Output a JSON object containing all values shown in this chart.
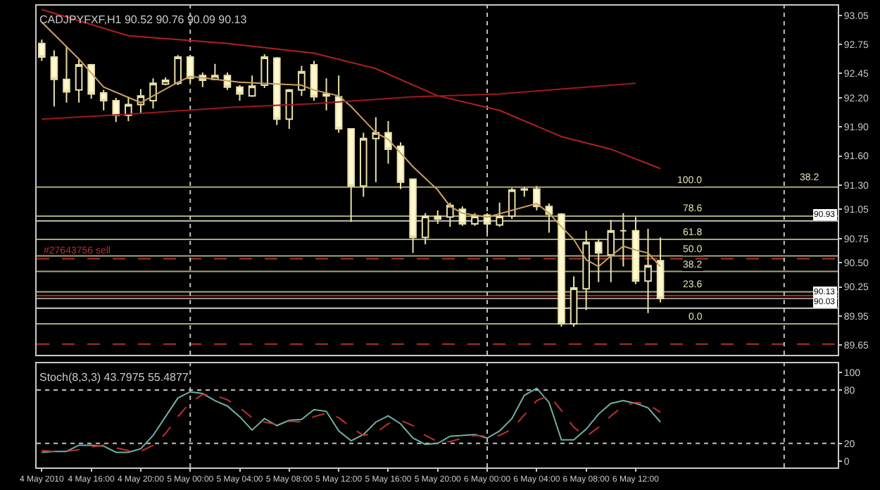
{
  "chart_data": [
    {
      "type": "candlestick",
      "title": "CADJPYFXF,H1 90.52 90.76 90.09 90.13",
      "x": [
        "2010-05-04T12:00",
        "2010-05-04T13:00",
        "2010-05-04T14:00",
        "2010-05-04T15:00",
        "2010-05-04T16:00",
        "2010-05-04T17:00",
        "2010-05-04T18:00",
        "2010-05-04T19:00",
        "2010-05-04T20:00",
        "2010-05-04T21:00",
        "2010-05-04T22:00",
        "2010-05-04T23:00",
        "2010-05-05T00:00",
        "2010-05-05T01:00",
        "2010-05-05T02:00",
        "2010-05-05T03:00",
        "2010-05-05T04:00",
        "2010-05-05T05:00",
        "2010-05-05T06:00",
        "2010-05-05T07:00",
        "2010-05-05T08:00",
        "2010-05-05T09:00",
        "2010-05-05T10:00",
        "2010-05-05T11:00",
        "2010-05-05T12:00",
        "2010-05-05T13:00",
        "2010-05-05T14:00",
        "2010-05-05T15:00",
        "2010-05-05T16:00",
        "2010-05-05T17:00",
        "2010-05-05T18:00",
        "2010-05-05T19:00",
        "2010-05-05T20:00",
        "2010-05-05T21:00",
        "2010-05-05T22:00",
        "2010-05-05T23:00",
        "2010-05-06T00:00",
        "2010-05-06T01:00",
        "2010-05-06T02:00",
        "2010-05-06T03:00",
        "2010-05-06T04:00",
        "2010-05-06T05:00",
        "2010-05-06T06:00",
        "2010-05-06T07:00",
        "2010-05-06T08:00",
        "2010-05-06T09:00",
        "2010-05-06T10:00",
        "2010-05-06T11:00",
        "2010-05-06T12:00",
        "2010-05-06T13:00",
        "2010-05-06T14:00"
      ],
      "ohlc": [
        [
          92.76,
          92.8,
          92.58,
          92.62
        ],
        [
          92.62,
          92.69,
          92.11,
          92.39
        ],
        [
          92.39,
          92.73,
          92.15,
          92.26
        ],
        [
          92.28,
          92.6,
          92.15,
          92.54
        ],
        [
          92.54,
          92.55,
          92.19,
          92.24
        ],
        [
          92.25,
          92.28,
          92.07,
          92.17
        ],
        [
          92.17,
          92.2,
          91.95,
          92.02
        ],
        [
          92.02,
          92.21,
          91.96,
          92.13
        ],
        [
          92.13,
          92.29,
          92.04,
          92.22
        ],
        [
          92.17,
          92.4,
          92.09,
          92.35
        ],
        [
          92.34,
          92.41,
          92.33,
          92.38
        ],
        [
          92.35,
          92.64,
          92.33,
          92.62
        ],
        [
          92.62,
          92.64,
          92.36,
          92.4
        ],
        [
          92.43,
          92.46,
          92.31,
          92.38
        ],
        [
          92.39,
          92.55,
          92.38,
          92.43
        ],
        [
          92.43,
          92.46,
          92.28,
          92.31
        ],
        [
          92.31,
          92.33,
          92.17,
          92.24
        ],
        [
          92.22,
          92.43,
          92.21,
          92.32
        ],
        [
          92.33,
          92.65,
          92.3,
          92.62
        ],
        [
          92.61,
          92.62,
          91.92,
          91.98
        ],
        [
          91.98,
          92.29,
          91.88,
          92.28
        ],
        [
          92.28,
          92.53,
          92.22,
          92.47
        ],
        [
          92.54,
          92.58,
          92.17,
          92.21
        ],
        [
          92.22,
          92.4,
          92.07,
          92.24
        ],
        [
          92.21,
          92.43,
          91.84,
          91.88
        ],
        [
          91.88,
          91.88,
          90.92,
          91.29
        ],
        [
          91.29,
          91.84,
          91.18,
          91.78
        ],
        [
          91.78,
          92.0,
          91.33,
          91.84
        ],
        [
          91.84,
          91.96,
          91.52,
          91.67
        ],
        [
          91.7,
          91.74,
          91.26,
          91.33
        ],
        [
          91.36,
          91.36,
          90.6,
          90.76
        ],
        [
          90.76,
          91.01,
          90.69,
          90.98
        ],
        [
          90.98,
          91.04,
          90.9,
          90.95
        ],
        [
          90.97,
          91.12,
          90.87,
          91.09
        ],
        [
          91.05,
          91.08,
          90.88,
          90.9
        ],
        [
          90.9,
          91.01,
          90.88,
          90.98
        ],
        [
          90.99,
          91.01,
          90.81,
          90.9
        ],
        [
          90.89,
          91.12,
          90.87,
          90.98
        ],
        [
          90.98,
          91.27,
          90.95,
          91.25
        ],
        [
          91.25,
          91.28,
          91.18,
          91.26
        ],
        [
          91.26,
          91.29,
          91.04,
          91.08
        ],
        [
          91.08,
          91.11,
          90.81,
          91.0
        ],
        [
          91.0,
          91.01,
          89.84,
          89.87
        ],
        [
          89.87,
          90.36,
          89.84,
          90.24
        ],
        [
          90.23,
          90.83,
          90.01,
          90.71
        ],
        [
          90.71,
          90.74,
          90.3,
          90.6
        ],
        [
          90.58,
          90.94,
          90.3,
          90.83
        ],
        [
          90.83,
          91.01,
          90.46,
          90.83
        ],
        [
          90.83,
          90.97,
          90.28,
          90.31
        ],
        [
          90.31,
          90.85,
          89.98,
          90.47
        ],
        [
          90.52,
          90.76,
          90.09,
          90.13
        ]
      ],
      "series": [
        {
          "type": "line",
          "color": "#c8a060",
          "x": [
            "2010-05-04T12:00",
            "2010-05-04T15:00",
            "2010-05-04T17:00",
            "2010-05-04T20:00",
            "2010-05-04T23:00",
            "2010-05-05T00:00",
            "2010-05-05T04:00",
            "2010-05-05T09:00",
            "2010-05-05T10:00",
            "2010-05-05T12:00",
            "2010-05-05T13:00",
            "2010-05-05T15:00",
            "2010-05-05T16:00",
            "2010-05-05T18:00",
            "2010-05-05T20:00",
            "2010-05-05T21:00",
            "2010-05-05T22:00",
            "2010-05-06T00:00",
            "2010-05-06T02:00",
            "2010-05-06T04:00",
            "2010-05-06T05:00",
            "2010-05-06T06:00",
            "2010-05-06T07:00",
            "2010-05-06T08:00",
            "2010-05-06T09:00",
            "2010-05-06T10:00",
            "2010-05-06T11:00",
            "2010-05-06T12:00",
            "2010-05-06T13:00",
            "2010-05-06T14:00"
          ],
          "values": [
            92.98,
            92.6,
            92.31,
            92.15,
            92.36,
            92.42,
            92.36,
            92.33,
            92.28,
            92.22,
            92.11,
            91.84,
            91.77,
            91.49,
            91.25,
            91.08,
            91.01,
            90.97,
            91.04,
            91.11,
            91.01,
            90.87,
            90.74,
            90.53,
            90.46,
            90.57,
            90.67,
            90.63,
            90.6,
            90.46
          ]
        },
        {
          "type": "line",
          "color": "#b02020",
          "x": [
            "2010-05-04T12:00",
            "2010-05-04T19:00",
            "2010-05-05T03:00",
            "2010-05-05T10:00",
            "2010-05-05T15:00",
            "2010-05-05T20:00",
            "2010-05-06T01:00",
            "2010-05-06T06:00",
            "2010-05-06T10:00",
            "2010-05-06T14:00"
          ],
          "values": [
            93.11,
            92.84,
            92.76,
            92.66,
            92.5,
            92.22,
            92.07,
            91.8,
            91.67,
            91.47
          ]
        },
        {
          "type": "line",
          "color": "#a01818",
          "x": [
            "2010-05-04T12:00",
            "2010-05-04T19:00",
            "2010-05-05T03:00",
            "2010-05-05T10:00",
            "2010-05-05T18:00",
            "2010-05-06T01:00",
            "2010-05-06T06:00",
            "2010-05-06T12:00"
          ],
          "values": [
            91.98,
            92.03,
            92.1,
            92.14,
            92.21,
            92.24,
            92.29,
            92.35
          ]
        }
      ],
      "xlim": [
        "2010-05-04T11:35",
        "2010-05-07T04:20"
      ],
      "ylim": [
        89.55,
        93.15
      ],
      "yticks": [
        93.05,
        92.75,
        92.45,
        {
          "value": 92.2,
          "label": "92.20"
        },
        {
          "value": 91.9,
          "label": "91.90"
        },
        {
          "value": 91.6,
          "label": "91.60"
        },
        {
          "value": 91.3,
          "label": "91.30"
        },
        91.05,
        90.75,
        {
          "value": 90.5,
          "label": "90.50"
        },
        90.25,
        89.95,
        89.65
      ],
      "tick_labels": "y",
      "grid": false,
      "ref_lines": [
        {
          "axis": "y",
          "value": 91.28,
          "color": "#a8a870",
          "line_style": "solid"
        },
        {
          "axis": "y",
          "value": 90.98,
          "color": "#a8a870",
          "line_style": "solid"
        },
        {
          "axis": "y",
          "value": 90.74,
          "color": "#a8a870",
          "line_style": "solid"
        },
        {
          "axis": "y",
          "value": 90.57,
          "color": "#a8a870",
          "line_style": "solid"
        },
        {
          "axis": "y",
          "value": 90.41,
          "color": "#a8a870",
          "line_style": "solid"
        },
        {
          "axis": "y",
          "value": 90.2,
          "color": "#a8a870",
          "line_style": "solid"
        },
        {
          "axis": "y",
          "value": 89.87,
          "color": "#a8a870",
          "line_style": "solid"
        },
        {
          "axis": "y",
          "value": 90.54,
          "label": "#27643756 sell",
          "color": "#b03030",
          "line_style": "dashed"
        },
        {
          "axis": "y",
          "value": 90.93,
          "color": "#c0c0c0",
          "line_style": "solid"
        },
        {
          "axis": "y",
          "value": 90.16,
          "color": "#c02020",
          "line_style": "solid"
        },
        {
          "axis": "y",
          "value": 90.13,
          "color": "#909090",
          "line_style": "solid"
        },
        {
          "axis": "y",
          "value": 90.03,
          "color": "#d0d0d0",
          "line_style": "solid"
        },
        {
          "axis": "y",
          "value": 89.66,
          "color": "#b03030",
          "line_style": "dashed"
        },
        {
          "axis": "x",
          "value": "2010-05-05T00:00",
          "color": "#c0c0c0",
          "line_style": "dotted"
        },
        {
          "axis": "x",
          "value": "2010-05-06T00:00",
          "color": "#c0c0c0",
          "line_style": "dotted"
        },
        {
          "axis": "x",
          "value": "2010-05-07T00:00",
          "color": "#c0c0c0",
          "line_style": "dotted"
        }
      ],
      "annotations": [
        {
          "text": "100.0",
          "x": "2010-05-06T17:30",
          "y": 91.28
        },
        {
          "text": "78.6",
          "x": "2010-05-06T17:30",
          "y": 90.98
        },
        {
          "text": "61.8",
          "x": "2010-05-06T17:30",
          "y": 90.74
        },
        {
          "text": "50.0",
          "x": "2010-05-06T17:30",
          "y": 90.57
        },
        {
          "text": "38.2",
          "x": "2010-05-06T17:30",
          "y": 90.41
        },
        {
          "text": "23.6",
          "x": "2010-05-06T17:30",
          "y": 90.2
        },
        {
          "text": "0.0",
          "x": "2010-05-06T17:30",
          "y": 89.87
        },
        {
          "text": "38.2",
          "x": "2010-05-07T03:00",
          "y": 91.3
        },
        {
          "text": "90.93",
          "y": 90.93
        },
        {
          "text": "90.13",
          "y": 90.13
        },
        {
          "text": "90.03",
          "y": 90.03
        }
      ]
    },
    {
      "type": "line",
      "title": "Stoch(8,3,3) 43.7975 55.4877",
      "x": [
        "2010-05-04T12:00",
        "2010-05-04T13:00",
        "2010-05-04T14:00",
        "2010-05-04T15:00",
        "2010-05-04T16:00",
        "2010-05-04T17:00",
        "2010-05-04T18:00",
        "2010-05-04T19:00",
        "2010-05-04T20:00",
        "2010-05-04T21:00",
        "2010-05-04T22:00",
        "2010-05-04T23:00",
        "2010-05-05T00:00",
        "2010-05-05T01:00",
        "2010-05-05T02:00",
        "2010-05-05T03:00",
        "2010-05-05T04:00",
        "2010-05-05T05:00",
        "2010-05-05T06:00",
        "2010-05-05T07:00",
        "2010-05-05T08:00",
        "2010-05-05T09:00",
        "2010-05-05T10:00",
        "2010-05-05T11:00",
        "2010-05-05T12:00",
        "2010-05-05T13:00",
        "2010-05-05T14:00",
        "2010-05-05T15:00",
        "2010-05-05T16:00",
        "2010-05-05T17:00",
        "2010-05-05T18:00",
        "2010-05-05T19:00",
        "2010-05-05T20:00",
        "2010-05-05T21:00",
        "2010-05-05T22:00",
        "2010-05-05T23:00",
        "2010-05-06T00:00",
        "2010-05-06T01:00",
        "2010-05-06T02:00",
        "2010-05-06T03:00",
        "2010-05-06T04:00",
        "2010-05-06T05:00",
        "2010-05-06T06:00",
        "2010-05-06T07:00",
        "2010-05-06T08:00",
        "2010-05-06T09:00",
        "2010-05-06T10:00",
        "2010-05-06T11:00",
        "2010-05-06T12:00",
        "2010-05-06T13:00",
        "2010-05-06T14:00"
      ],
      "series": [
        {
          "color": "#70b0a0",
          "line_style": "solid",
          "values": [
            10,
            11,
            11,
            18,
            18,
            17,
            10,
            10,
            14,
            29,
            50,
            71,
            78,
            76,
            68,
            62,
            50,
            35,
            48,
            40,
            46,
            47,
            58,
            56,
            34,
            23,
            30,
            44,
            51,
            42,
            26,
            19,
            20,
            28,
            29,
            30,
            26,
            34,
            48,
            74,
            82,
            66,
            24,
            24,
            36,
            53,
            65,
            68,
            65,
            60,
            44
          ]
        },
        {
          "color": "#c03030",
          "line_style": "dashed",
          "values": [
            12,
            11,
            11,
            13,
            16,
            18,
            15,
            12,
            11,
            18,
            31,
            50,
            66,
            75,
            74,
            69,
            60,
            49,
            44,
            41,
            45,
            44,
            50,
            54,
            49,
            38,
            29,
            32,
            42,
            46,
            40,
            29,
            22,
            22,
            26,
            29,
            28,
            29,
            36,
            52,
            68,
            74,
            57,
            38,
            28,
            38,
            51,
            62,
            66,
            64,
            55
          ]
        }
      ],
      "xlim": [
        "2010-05-04T11:35",
        "2010-05-07T04:20"
      ],
      "xticks": [
        {
          "value": "2010-05-04T12:00",
          "label": "4 May 2010"
        },
        {
          "value": "2010-05-04T16:00",
          "label": "4 May 16:00"
        },
        {
          "value": "2010-05-04T20:00",
          "label": "4 May 20:00"
        },
        {
          "value": "2010-05-05T00:00",
          "label": "5 May 00:00"
        },
        {
          "value": "2010-05-05T04:00",
          "label": "5 May 04:00"
        },
        {
          "value": "2010-05-05T08:00",
          "label": "5 May 08:00"
        },
        {
          "value": "2010-05-05T12:00",
          "label": "5 May 12:00"
        },
        {
          "value": "2010-05-05T16:00",
          "label": "5 May 16:00"
        },
        {
          "value": "2010-05-05T20:00",
          "label": "5 May 20:00"
        },
        {
          "value": "2010-05-06T00:00",
          "label": "6 May 00:00"
        },
        {
          "value": "2010-05-06T04:00",
          "label": "6 May 04:00"
        },
        {
          "value": "2010-05-06T08:00",
          "label": "6 May 08:00"
        },
        {
          "value": "2010-05-06T12:00",
          "label": "6 May 12:00"
        }
      ],
      "ylim": [
        -7,
        110
      ],
      "yticks": [
        0,
        20,
        80,
        100
      ],
      "grid": false,
      "marker": "none",
      "ref_lines": [
        {
          "axis": "y",
          "value": 80,
          "color": "#c0c0c0",
          "line_style": "dotted"
        },
        {
          "axis": "y",
          "value": 20,
          "color": "#c0c0c0",
          "line_style": "dotted"
        },
        {
          "axis": "x",
          "value": "2010-05-05T00:00",
          "color": "#c0c0c0",
          "line_style": "dotted"
        },
        {
          "axis": "x",
          "value": "2010-05-06T00:00",
          "color": "#c0c0c0",
          "line_style": "dotted"
        },
        {
          "axis": "x",
          "value": "2010-05-07T00:00",
          "color": "#c0c0c0",
          "line_style": "dotted"
        }
      ]
    }
  ]
}
